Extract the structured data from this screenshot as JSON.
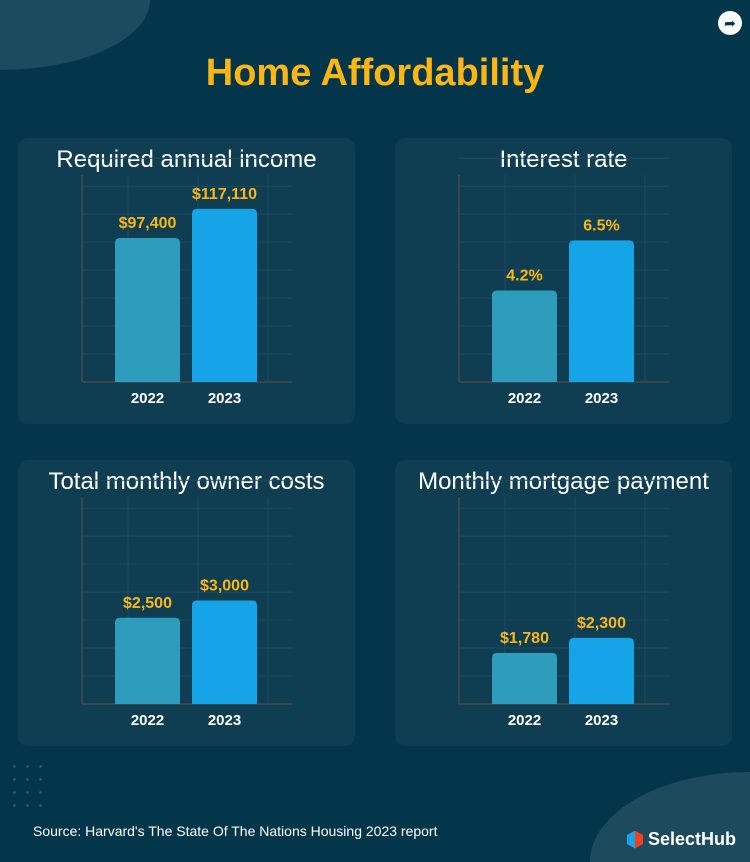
{
  "title": "Home Affordability",
  "source": "Source: Harvard's The State Of The Nations Housing 2023 report",
  "brand": "SelectHub",
  "share_icon": "share-arrow-icon",
  "colors": {
    "background": "#04364b",
    "panel": "#0f3d52",
    "title": "#fbb615",
    "bar_2022": "#2e9dbd",
    "bar_2023": "#15a4e8",
    "value_label": "#fbb615"
  },
  "chart_data": [
    {
      "type": "bar",
      "title": "Required annual income",
      "categories": [
        "2022",
        "2023"
      ],
      "values": [
        97400,
        117110
      ],
      "labels": [
        "$97,400",
        "$117,110"
      ],
      "ylim": [
        0,
        140000
      ],
      "grid": true
    },
    {
      "type": "bar",
      "title": "Interest rate",
      "categories": [
        "2022",
        "2023"
      ],
      "values": [
        4.2,
        6.5
      ],
      "labels": [
        "4.2%",
        "6.5%"
      ],
      "ylim": [
        0,
        9.5
      ],
      "grid": true
    },
    {
      "type": "bar",
      "title": "Total monthly owner costs",
      "categories": [
        "2022",
        "2023"
      ],
      "values": [
        2500,
        3000
      ],
      "labels": [
        "$2,500",
        "$3,000"
      ],
      "ylim": [
        0,
        6000
      ],
      "grid": true
    },
    {
      "type": "bar",
      "title": "Monthly mortgage payment",
      "categories": [
        "2022",
        "2023"
      ],
      "values": [
        1780,
        2300
      ],
      "labels": [
        "$1,780",
        "$2,300"
      ],
      "ylim": [
        0,
        7200
      ],
      "grid": true
    }
  ]
}
